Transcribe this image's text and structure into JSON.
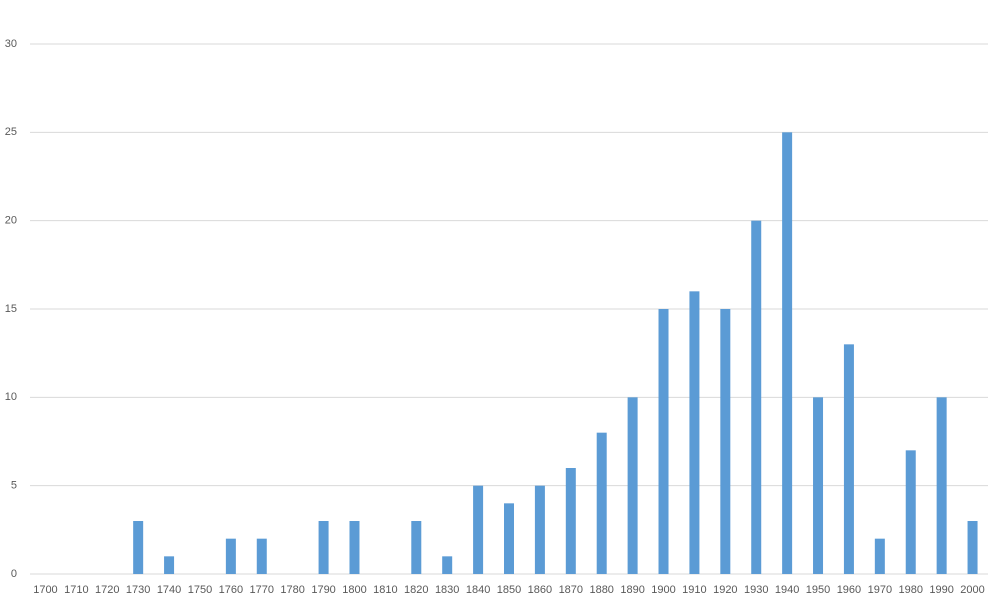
{
  "chart_data": {
    "type": "bar",
    "categories": [
      "1700",
      "1710",
      "1720",
      "1730",
      "1740",
      "1750",
      "1760",
      "1770",
      "1780",
      "1790",
      "1800",
      "1810",
      "1820",
      "1830",
      "1840",
      "1850",
      "1860",
      "1870",
      "1880",
      "1890",
      "1900",
      "1910",
      "1920",
      "1930",
      "1940",
      "1950",
      "1960",
      "1970",
      "1980",
      "1990",
      "2000"
    ],
    "values": [
      0,
      0,
      0,
      3,
      1,
      0,
      2,
      2,
      0,
      3,
      3,
      0,
      3,
      1,
      5,
      4,
      5,
      6,
      8,
      10,
      15,
      16,
      15,
      20,
      25,
      10,
      13,
      2,
      7,
      10,
      3
    ],
    "color": "#5b9bd5",
    "ylim": [
      0,
      30
    ],
    "yticks": [
      0,
      5,
      10,
      15,
      20,
      25,
      30
    ],
    "grid": true
  }
}
